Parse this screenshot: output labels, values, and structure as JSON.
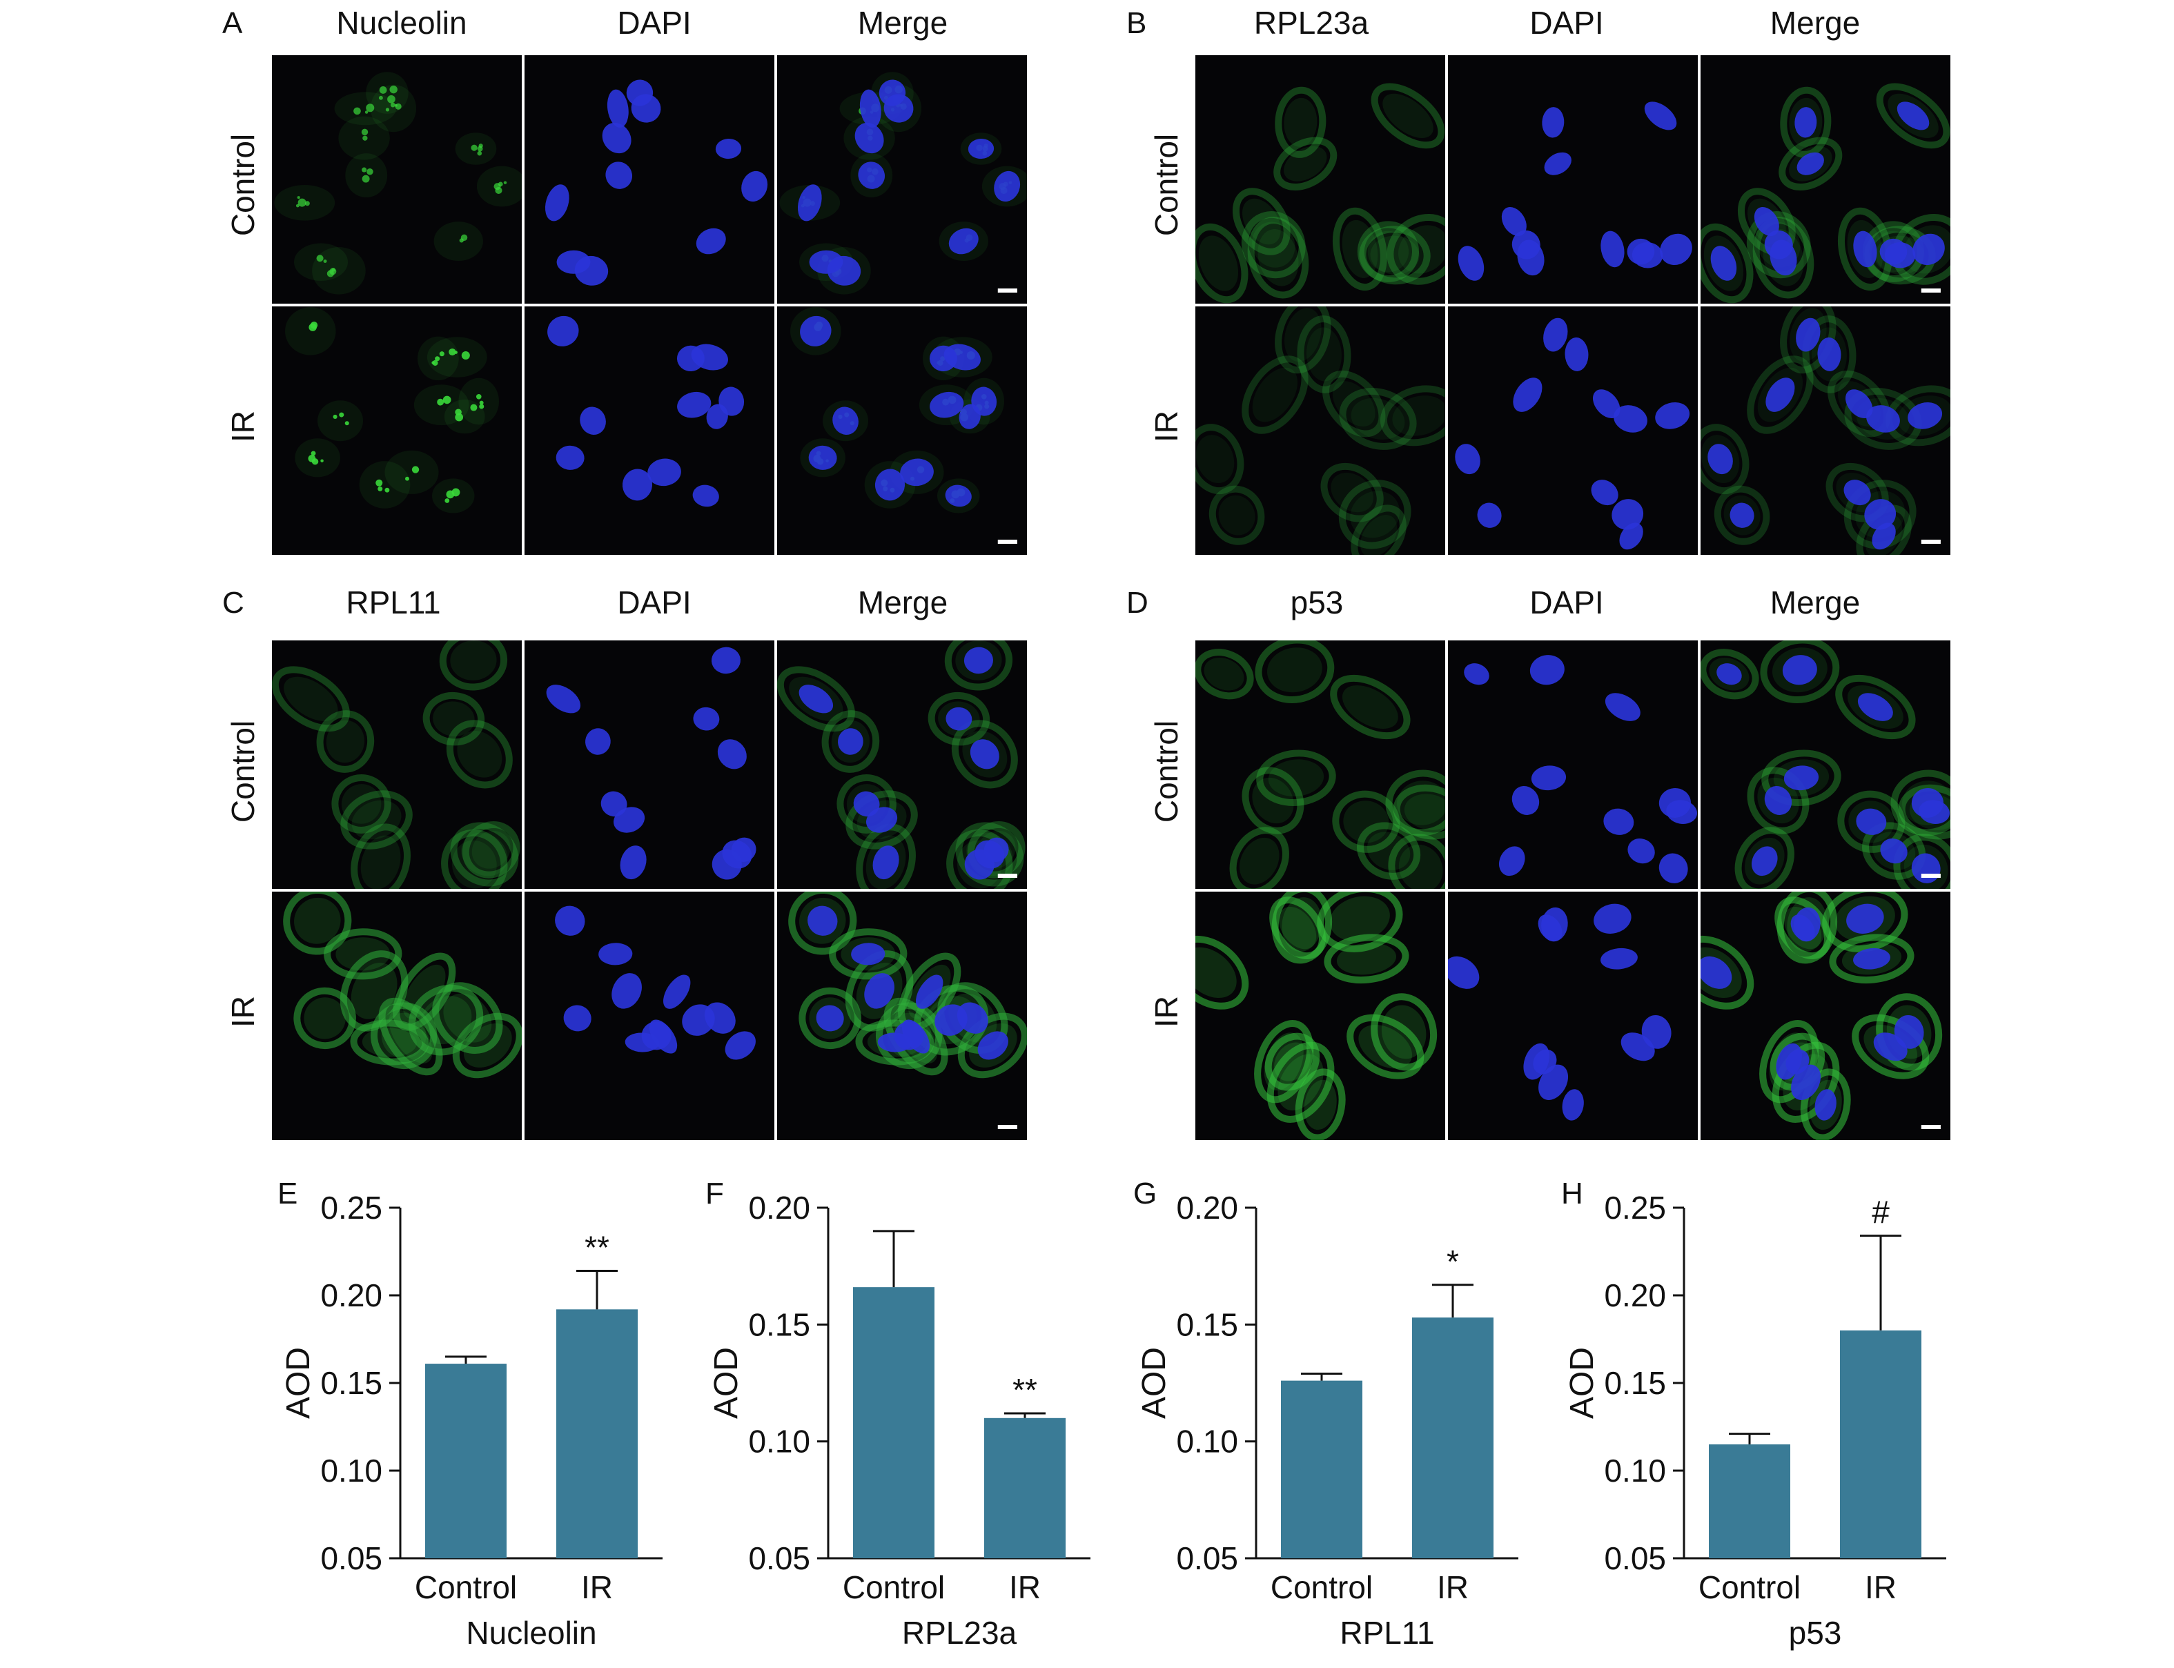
{
  "micrographs": [
    {
      "letter": "A",
      "columns": [
        "Nucleolin",
        "DAPI",
        "Merge"
      ],
      "rows": [
        "Control",
        "IR"
      ],
      "tint": "#3ad83a",
      "pattern": "nucleolar"
    },
    {
      "letter": "B",
      "columns": [
        "RPL23a",
        "DAPI",
        "Merge"
      ],
      "rows": [
        "Control",
        "IR"
      ],
      "tint": "#2fae3a",
      "pattern": "cytoplasmic"
    },
    {
      "letter": "C",
      "columns": [
        "RPL11",
        "DAPI",
        "Merge"
      ],
      "rows": [
        "Control",
        "IR"
      ],
      "tint": "#2fae3a",
      "pattern": "cytoplasmic"
    },
    {
      "letter": "D",
      "columns": [
        "p53",
        "DAPI",
        "Merge"
      ],
      "rows": [
        "Control",
        "IR"
      ],
      "tint": "#34c43c",
      "pattern": "cytoplasmic"
    }
  ],
  "nucleus_color": "#2a34d8",
  "bar_color": "#3a7b96",
  "chart_data": [
    {
      "letter": "E",
      "type": "bar",
      "categories": [
        "Control",
        "IR"
      ],
      "values": [
        0.161,
        0.192
      ],
      "errors": [
        0.004,
        0.022
      ],
      "annotations": [
        "",
        "**"
      ],
      "xlabel": "Nucleolin",
      "ylabel": "AOD",
      "ylim": [
        0.05,
        0.25
      ],
      "yticks": [
        "0.05",
        "0.10",
        "0.15",
        "0.20",
        "0.25"
      ]
    },
    {
      "letter": "F",
      "type": "bar",
      "categories": [
        "Control",
        "IR"
      ],
      "values": [
        0.166,
        0.11
      ],
      "errors": [
        0.024,
        0.002
      ],
      "annotations": [
        "",
        "**"
      ],
      "xlabel": "RPL23a",
      "ylabel": "AOD",
      "ylim": [
        0.05,
        0.2
      ],
      "yticks": [
        "0.05",
        "0.10",
        "0.15",
        "0.20"
      ]
    },
    {
      "letter": "G",
      "type": "bar",
      "categories": [
        "Control",
        "IR"
      ],
      "values": [
        0.126,
        0.153
      ],
      "errors": [
        0.003,
        0.014
      ],
      "annotations": [
        "",
        "*"
      ],
      "xlabel": "RPL11",
      "ylabel": "AOD",
      "ylim": [
        0.05,
        0.2
      ],
      "yticks": [
        "0.05",
        "0.10",
        "0.15",
        "0.20"
      ]
    },
    {
      "letter": "H",
      "type": "bar",
      "categories": [
        "Control",
        "IR"
      ],
      "values": [
        0.115,
        0.18
      ],
      "errors": [
        0.006,
        0.054
      ],
      "annotations": [
        "",
        "#"
      ],
      "xlabel": "p53",
      "ylabel": "AOD",
      "ylim": [
        0.05,
        0.25
      ],
      "yticks": [
        "0.05",
        "0.10",
        "0.15",
        "0.20",
        "0.25"
      ]
    }
  ]
}
